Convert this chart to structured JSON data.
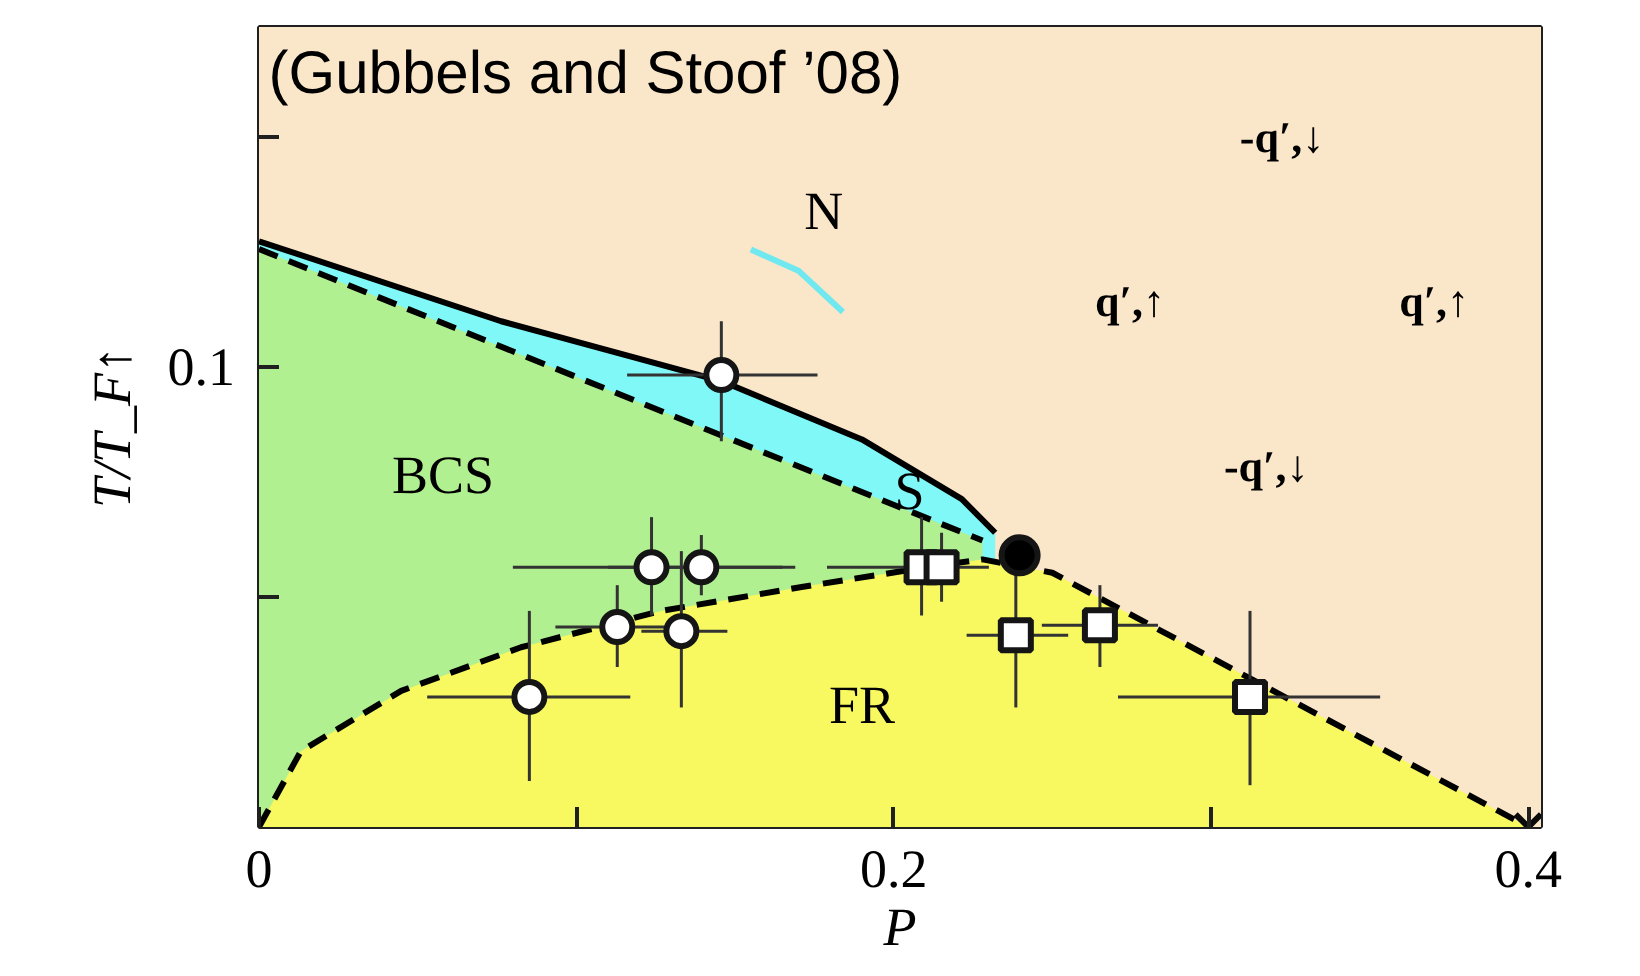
{
  "chart_data": {
    "type": "scatter",
    "xlabel": "P",
    "ylabel": "T/T_F↑",
    "xlim": [
      0,
      0.404
    ],
    "ylim": [
      0,
      0.174
    ],
    "xticks": [
      0,
      {
        "value": 0.1,
        "label": null
      },
      0.2,
      {
        "value": 0.3,
        "label": null
      },
      0.4
    ],
    "yticks": [
      {
        "value": 0.05,
        "label": null
      },
      0.1,
      {
        "value": 0.15,
        "label": null
      }
    ],
    "annotations": [
      "(Gubbels and Stoof ’08)",
      "-q′,↓",
      "q′,↑",
      "q′,↑",
      "-q′,↓",
      "N",
      "BCS",
      "S",
      "FR"
    ],
    "bands": [
      {
        "axis": "y",
        "from": 0,
        "to": 0.174,
        "color": "#fae6c8"
      }
    ],
    "series": [
      {
        "type": "area",
        "color": "#80f8f8",
        "line_style": "solid",
        "x": [
          0,
          0.0763,
          0.1457,
          0.19,
          0.2215,
          0.232
        ],
        "values": [
          0.1274,
          0.11,
          0.097,
          0.0843,
          0.0713,
          0.064
        ]
      },
      {
        "type": "area",
        "color": "#b0f090",
        "line_style": "dashed",
        "x": [
          0,
          0.228
        ],
        "values": [
          0.1257,
          0.0623
        ]
      },
      {
        "type": "area",
        "color": "#f8f860",
        "line_style": "dashed",
        "x": [
          0,
          0.0132,
          0.0448,
          0.0826,
          0.1268,
          0.171,
          0.2151,
          0.228,
          0.25,
          0.4
        ],
        "values": [
          0,
          0.0165,
          0.0296,
          0.0391,
          0.047,
          0.0522,
          0.057,
          0.0582,
          0.0553,
          0
        ]
      },
      {
        "type": "line",
        "color": "#70e8f0",
        "line_style": "solid",
        "x": [
          0.155,
          0.17,
          0.184
        ],
        "values": [
          0.1256,
          0.121,
          0.112
        ]
      },
      {
        "marker": "circle",
        "color": "#ffffff",
        "x": [
          0.0852,
          0.1129,
          0.1237,
          0.1331,
          0.1394,
          0.1457
        ],
        "values": [
          0.0283,
          0.0435,
          0.0565,
          0.0426,
          0.0565,
          0.0983
        ],
        "errors": [
          [
            0.01,
            0.047
          ],
          [
            0.0348,
            0.0526
          ],
          [
            0.046,
            0.0674
          ],
          [
            0.026,
            0.06
          ],
          [
            0.0504,
            0.0635
          ],
          [
            0.0839,
            0.11
          ]
        ],
        "xerrors": [
          [
            0.053,
            0.117
          ],
          [
            0.0934,
            0.13
          ],
          [
            0.08,
            0.165
          ],
          [
            0.1205,
            0.1476
          ],
          [
            0.11,
            0.169
          ],
          [
            0.116,
            0.176
          ]
        ]
      },
      {
        "marker": "square",
        "color": "#ffffff",
        "x": [
          0.2088,
          0.2151,
          0.2385,
          0.265,
          0.3123
        ],
        "values": [
          0.0565,
          0.0565,
          0.0417,
          0.0439,
          0.0283
        ],
        "errors": [
          [
            0.046,
            0.0674
          ],
          [
            0.049,
            0.064
          ],
          [
            0.026,
            0.055
          ],
          [
            0.0348,
            0.0526
          ],
          [
            0.0091,
            0.047
          ]
        ],
        "xerrors": [
          [
            0.179,
            0.23
          ],
          null,
          [
            0.223,
            0.255
          ],
          [
            0.2467,
            0.2833
          ],
          [
            0.2707,
            0.3533
          ]
        ]
      },
      {
        "marker": "circle",
        "color": "#000000",
        "x": [
          0.2397
        ],
        "values": [
          0.0591
        ]
      },
      {
        "marker": "cross",
        "color": "#0a0a0a",
        "x": [
          0.4
        ],
        "values": [
          0
        ]
      }
    ]
  }
}
